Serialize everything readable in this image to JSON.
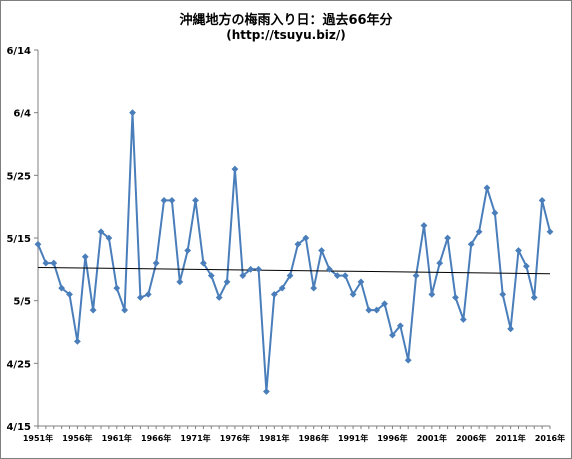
{
  "chart_data": {
    "type": "line",
    "title": "沖縄地方の梅雨入り日：過去66年分",
    "subtitle": "(http://tsuyu.biz/)",
    "xlabel": "",
    "ylabel": "",
    "x_start": 1951,
    "x_end": 2016,
    "x_tick_labels": [
      "1951年",
      "1956年",
      "1961年",
      "1966年",
      "1971年",
      "1976年",
      "1981年",
      "1986年",
      "1991年",
      "1996年",
      "2001年",
      "2006年",
      "2011年",
      "2016年"
    ],
    "y_tick_labels": [
      "4/15",
      "4/25",
      "5/5",
      "5/15",
      "5/25",
      "6/4",
      "6/14"
    ],
    "ylim_days_from_apr1": [
      14,
      74
    ],
    "grid": false,
    "colors": {
      "series": "#4a7ebb",
      "trend": "#000000",
      "axis": "#7f7f7f"
    },
    "series": [
      {
        "values_days_from_apr1": [
          43.0,
          40.0,
          40.0,
          36.0,
          35.0,
          27.5,
          41.0,
          32.5,
          45.0,
          44.0,
          36.0,
          32.5,
          64.0,
          34.5,
          35.0,
          40.0,
          50.0,
          50.0,
          37.0,
          42.0,
          50.0,
          40.0,
          38.0,
          34.5,
          37.0,
          55.0,
          38.0,
          39.0,
          39.0,
          19.5,
          35.0,
          36.0,
          38.0,
          43.0,
          44.0,
          36.0,
          42.0,
          39.0,
          38.0,
          38.0,
          35.0,
          37.0,
          32.5,
          32.5,
          33.5,
          28.5,
          30.0,
          24.5,
          38.0,
          46.0,
          35.0,
          40.0,
          44.0,
          34.5,
          31.0,
          43.0,
          45.0,
          52.0,
          48.0,
          35.0,
          29.5,
          42.0,
          39.5,
          34.5,
          50.0,
          45.0
        ]
      }
    ],
    "trend_line_days_from_apr1": [
      39.3,
      38.3
    ]
  }
}
